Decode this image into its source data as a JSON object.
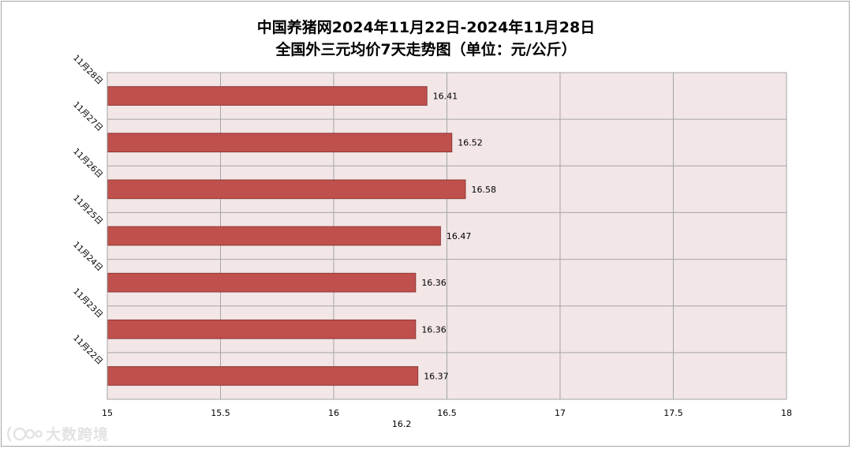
{
  "title": {
    "line1": "中国养猪网2024年11月22日-2024年11月28日",
    "line2": "全国外三元均价7天走势图（单位：元/公斤）"
  },
  "watermark": {
    "text": "大数跨境",
    "icon": "camera-logo-icon"
  },
  "colors": {
    "bar_fill": "#c0504d",
    "bar_stroke": "#8c3836",
    "plot_bg": "#f2e6e6",
    "grid": "#a6a6a6"
  },
  "chart_data": {
    "type": "bar",
    "orientation": "horizontal",
    "categories": [
      "11月22日",
      "11月23日",
      "11月24日",
      "11月25日",
      "11月26日",
      "11月27日",
      "11月28日"
    ],
    "values": [
      16.37,
      16.36,
      16.36,
      16.47,
      16.58,
      16.52,
      16.41
    ],
    "value_labels": [
      "16.37",
      "16.36",
      "16.36",
      "16.47",
      "16.58",
      "16.52",
      "16.41"
    ],
    "xlim": [
      15,
      18
    ],
    "xticks": [
      "15",
      "15.5",
      "16",
      "16.5",
      "17",
      "17.5",
      "18"
    ],
    "xtick_values": [
      15,
      15.5,
      16,
      16.5,
      17,
      17.5,
      18
    ],
    "extra_label": "16.2",
    "xlabel": "",
    "ylabel": "",
    "grid": true,
    "legend": "none"
  }
}
